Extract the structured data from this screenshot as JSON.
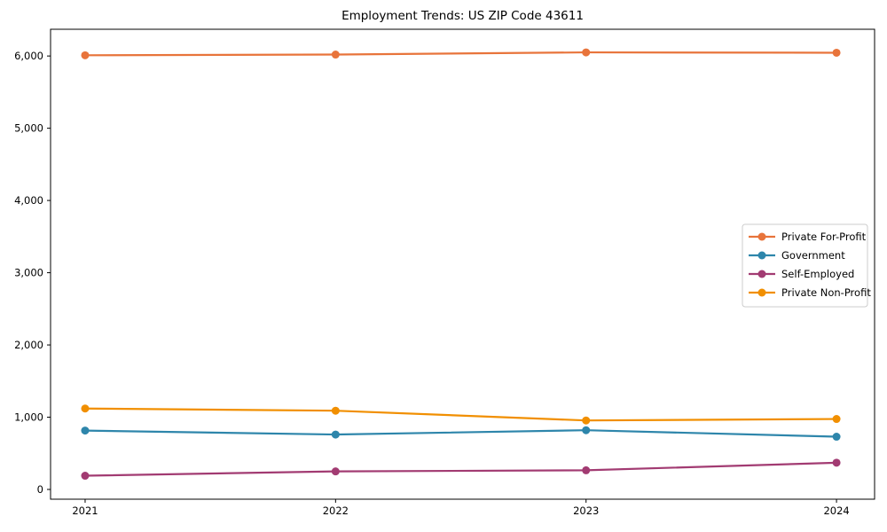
{
  "chart_data": {
    "type": "line",
    "title": "Employment Trends: US ZIP Code 43611",
    "xlabel": "",
    "ylabel": "",
    "x": [
      2021,
      2022,
      2023,
      2024
    ],
    "xtick_labels": [
      "2021",
      "2022",
      "2023",
      "2024"
    ],
    "yticks": [
      0,
      1000,
      2000,
      3000,
      4000,
      5000,
      6000
    ],
    "ytick_labels": [
      "0",
      "1,000",
      "2,000",
      "3,000",
      "4,000",
      "5,000",
      "6,000"
    ],
    "xlim": [
      2020.862,
      2024.152
    ],
    "ylim": [
      -135,
      6370
    ],
    "grid": false,
    "legend_position": "center right",
    "series": [
      {
        "name": "Private For-Profit",
        "color": "#E8743B",
        "values": [
          6010,
          6020,
          6050,
          6045
        ]
      },
      {
        "name": "Government",
        "color": "#2E86AB",
        "values": [
          815,
          760,
          820,
          730
        ]
      },
      {
        "name": "Self-Employed",
        "color": "#A23B72",
        "values": [
          190,
          250,
          265,
          370
        ]
      },
      {
        "name": "Private Non-Profit",
        "color": "#F18F01",
        "values": [
          1120,
          1090,
          955,
          975
        ]
      }
    ],
    "colors": {
      "spine": "#000000",
      "legend_border": "#cccccc",
      "background": "#ffffff"
    }
  }
}
